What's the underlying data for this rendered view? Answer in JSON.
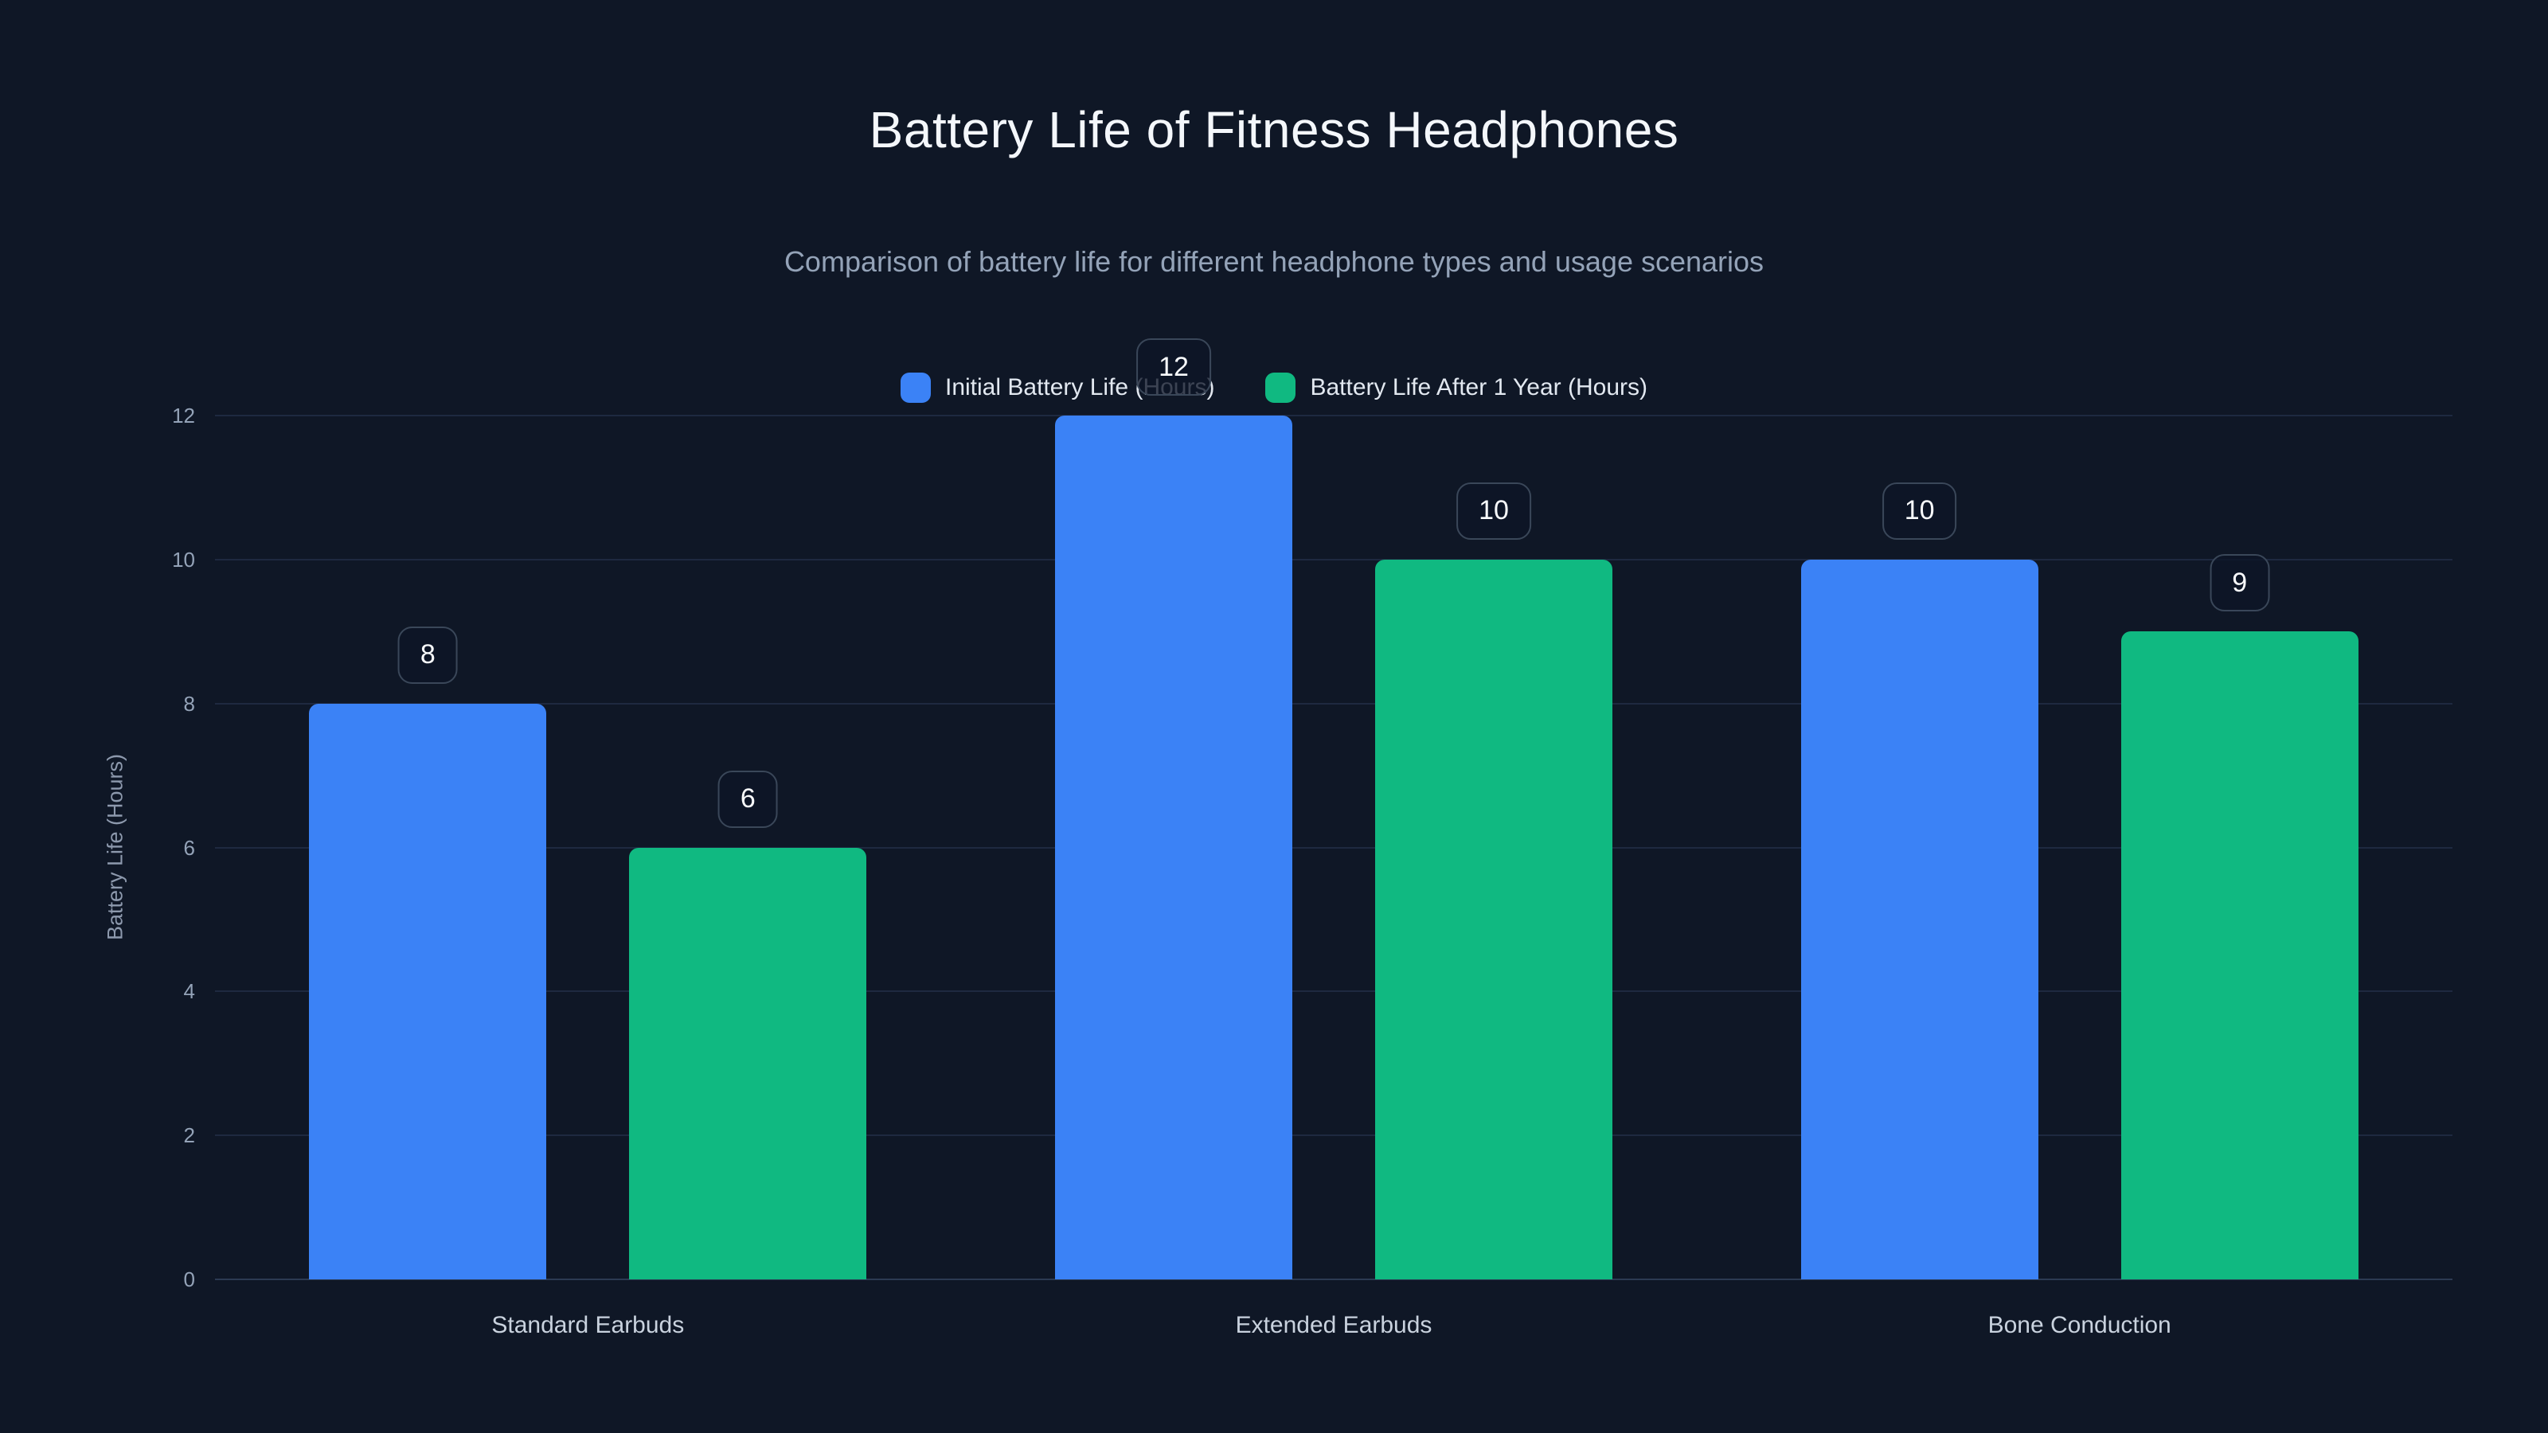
{
  "page": {
    "background_color": "#0f1726"
  },
  "header": {
    "title": "Battery Life of Fitness Headphones",
    "subtitle": "Comparison of battery life for different headphone types and usage scenarios"
  },
  "legend": {
    "position": "top-center",
    "items": [
      {
        "label": "Initial Battery Life (Hours)",
        "color": "#3b82f6"
      },
      {
        "label": "Battery Life After 1 Year (Hours)",
        "color": "#10b981"
      }
    ]
  },
  "chart_data": {
    "type": "bar",
    "title": "Battery Life of Fitness Headphones",
    "subtitle": "Comparison of battery life for different headphone types and usage scenarios",
    "categories": [
      "Standard Earbuds",
      "Extended Earbuds",
      "Bone Conduction"
    ],
    "series": [
      {
        "name": "Initial Battery Life (Hours)",
        "color": "#3b82f6",
        "values": [
          8,
          12,
          10
        ]
      },
      {
        "name": "Battery Life After 1 Year (Hours)",
        "color": "#10b981",
        "values": [
          6,
          10,
          9
        ]
      }
    ],
    "data_labels": [
      [
        8,
        12,
        10
      ],
      [
        6,
        10,
        9
      ]
    ],
    "xlabel": "",
    "ylabel": "Battery Life (Hours)",
    "ylim": [
      0,
      12
    ],
    "yticks": [
      0,
      2,
      4,
      6,
      8,
      10,
      12
    ],
    "grid": true,
    "legend_position": "top"
  }
}
